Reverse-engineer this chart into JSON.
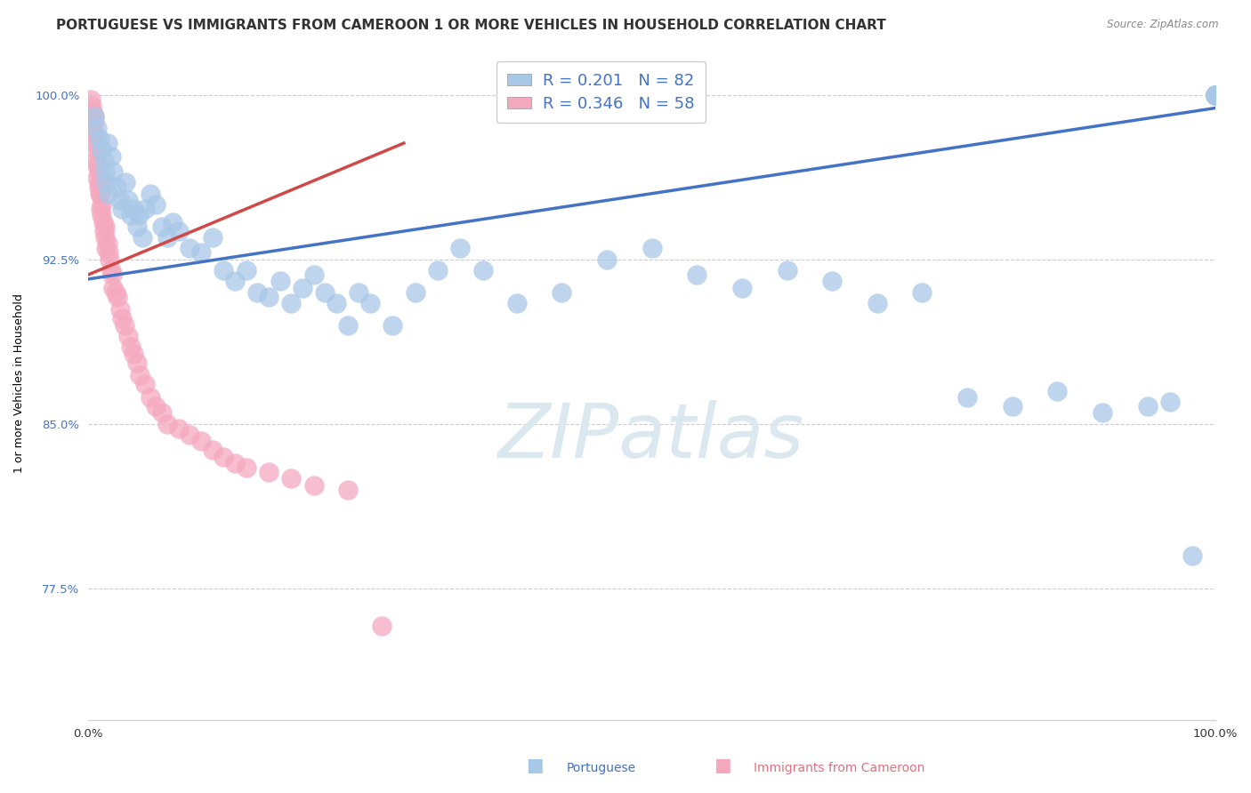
{
  "title": "PORTUGUESE VS IMMIGRANTS FROM CAMEROON 1 OR MORE VEHICLES IN HOUSEHOLD CORRELATION CHART",
  "source": "Source: ZipAtlas.com",
  "ylabel": "1 or more Vehicles in Household",
  "xlim": [
    0.0,
    1.0
  ],
  "ylim": [
    0.715,
    1.022
  ],
  "xticks": [
    0.0,
    0.1,
    0.2,
    0.3,
    0.4,
    0.5,
    0.6,
    0.7,
    0.8,
    0.9,
    1.0
  ],
  "xticklabels": [
    "0.0%",
    "",
    "",
    "",
    "",
    "",
    "",
    "",
    "",
    "",
    "100.0%"
  ],
  "ytick_positions": [
    0.775,
    0.85,
    0.925,
    1.0
  ],
  "ytick_labels": [
    "77.5%",
    "85.0%",
    "92.5%",
    "100.0%"
  ],
  "R_blue": 0.201,
  "N_blue": 82,
  "R_pink": 0.346,
  "N_pink": 58,
  "blue_scatter_color": "#a8c8e8",
  "pink_scatter_color": "#f4a8be",
  "blue_line_color": "#4472c4",
  "pink_line_color": "#d04848",
  "grid_color": "#cccccc",
  "watermark_text": "ZIPatlas",
  "watermark_color": "#dce8f0",
  "title_color": "#333333",
  "source_color": "#888888",
  "ytick_color": "#4472c4",
  "legend_label_blue": "Portuguese",
  "legend_label_pink": "Immigrants from Cameroon",
  "blue_x": [
    0.005,
    0.008,
    0.01,
    0.012,
    0.014,
    0.015,
    0.016,
    0.017,
    0.018,
    0.02,
    0.022,
    0.025,
    0.028,
    0.03,
    0.033,
    0.035,
    0.038,
    0.04,
    0.043,
    0.045,
    0.048,
    0.05,
    0.055,
    0.06,
    0.065,
    0.07,
    0.075,
    0.08,
    0.09,
    0.1,
    0.11,
    0.12,
    0.13,
    0.14,
    0.15,
    0.16,
    0.17,
    0.18,
    0.19,
    0.2,
    0.21,
    0.22,
    0.23,
    0.24,
    0.25,
    0.27,
    0.29,
    0.31,
    0.33,
    0.35,
    0.38,
    0.42,
    0.46,
    0.5,
    0.54,
    0.58,
    0.62,
    0.66,
    0.7,
    0.74,
    0.78,
    0.82,
    0.86,
    0.9,
    0.94,
    0.96,
    0.98,
    1.0,
    1.0,
    1.0,
    1.0,
    1.0,
    1.0,
    1.0,
    1.0,
    1.0,
    1.0,
    1.0,
    1.0,
    1.0,
    1.0,
    1.0
  ],
  "blue_y": [
    0.99,
    0.985,
    0.98,
    0.975,
    0.97,
    0.965,
    0.96,
    0.978,
    0.955,
    0.972,
    0.965,
    0.958,
    0.952,
    0.948,
    0.96,
    0.952,
    0.945,
    0.948,
    0.94,
    0.945,
    0.935,
    0.948,
    0.955,
    0.95,
    0.94,
    0.935,
    0.942,
    0.938,
    0.93,
    0.928,
    0.935,
    0.92,
    0.915,
    0.92,
    0.91,
    0.908,
    0.915,
    0.905,
    0.912,
    0.918,
    0.91,
    0.905,
    0.895,
    0.91,
    0.905,
    0.895,
    0.91,
    0.92,
    0.93,
    0.92,
    0.905,
    0.91,
    0.925,
    0.93,
    0.918,
    0.912,
    0.92,
    0.915,
    0.905,
    0.91,
    0.862,
    0.858,
    0.865,
    0.855,
    0.858,
    0.86,
    0.79,
    1.0,
    1.0,
    1.0,
    1.0,
    1.0,
    1.0,
    1.0,
    1.0,
    1.0,
    1.0,
    1.0,
    1.0,
    1.0,
    1.0,
    1.0
  ],
  "pink_x": [
    0.002,
    0.003,
    0.004,
    0.004,
    0.005,
    0.005,
    0.006,
    0.006,
    0.007,
    0.007,
    0.008,
    0.008,
    0.009,
    0.009,
    0.01,
    0.01,
    0.011,
    0.011,
    0.012,
    0.012,
    0.013,
    0.014,
    0.015,
    0.015,
    0.016,
    0.017,
    0.018,
    0.019,
    0.02,
    0.021,
    0.022,
    0.024,
    0.026,
    0.028,
    0.03,
    0.032,
    0.035,
    0.038,
    0.04,
    0.043,
    0.046,
    0.05,
    0.055,
    0.06,
    0.065,
    0.07,
    0.08,
    0.09,
    0.1,
    0.11,
    0.12,
    0.13,
    0.14,
    0.16,
    0.18,
    0.2,
    0.23,
    0.26
  ],
  "pink_y": [
    0.998,
    0.995,
    0.992,
    0.985,
    0.99,
    0.988,
    0.982,
    0.978,
    0.975,
    0.97,
    0.968,
    0.962,
    0.965,
    0.958,
    0.96,
    0.955,
    0.955,
    0.948,
    0.95,
    0.945,
    0.942,
    0.938,
    0.94,
    0.935,
    0.93,
    0.932,
    0.928,
    0.925,
    0.92,
    0.918,
    0.912,
    0.91,
    0.908,
    0.902,
    0.898,
    0.895,
    0.89,
    0.885,
    0.882,
    0.878,
    0.872,
    0.868,
    0.862,
    0.858,
    0.855,
    0.85,
    0.848,
    0.845,
    0.842,
    0.838,
    0.835,
    0.832,
    0.83,
    0.828,
    0.825,
    0.822,
    0.82,
    0.758
  ],
  "blue_line_y_at_0": 0.916,
  "blue_line_y_at_1": 0.994,
  "pink_line_x0": 0.0,
  "pink_line_x1": 0.28,
  "pink_line_y0": 0.918,
  "pink_line_y1": 0.978
}
